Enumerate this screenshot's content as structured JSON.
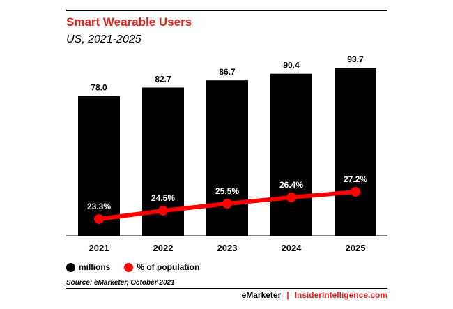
{
  "colors": {
    "accent": "#e1211d",
    "bar": "#000000",
    "line": "#ff0000",
    "text": "#000000"
  },
  "title": "Smart Wearable Users",
  "subtitle": "US, 2021-2025",
  "legend": [
    {
      "label": "millions",
      "color": "#000000"
    },
    {
      "label": "% of population",
      "color": "#ff0000"
    }
  ],
  "source": "Source: eMarketer, October 2021",
  "brand": {
    "left": "eMarketer",
    "separator": "|",
    "right": "InsiderIntelligence.com"
  },
  "chart_data": {
    "type": "bar",
    "title": "Smart Wearable Users",
    "subtitle": "US, 2021-2025",
    "categories": [
      "2021",
      "2022",
      "2023",
      "2024",
      "2025"
    ],
    "series": [
      {
        "name": "millions",
        "type": "bar",
        "values": [
          78.0,
          82.7,
          86.7,
          90.4,
          93.7
        ],
        "labels": [
          "78.0",
          "82.7",
          "86.7",
          "90.4",
          "93.7"
        ]
      },
      {
        "name": "% of population",
        "type": "line",
        "values": [
          23.3,
          24.5,
          25.5,
          26.4,
          27.2
        ],
        "labels": [
          "23.3%",
          "24.5%",
          "25.5%",
          "26.4%",
          "27.2%"
        ]
      }
    ],
    "ylim": [
      0,
      100
    ],
    "grid": false,
    "legend_position": "bottom-left"
  }
}
